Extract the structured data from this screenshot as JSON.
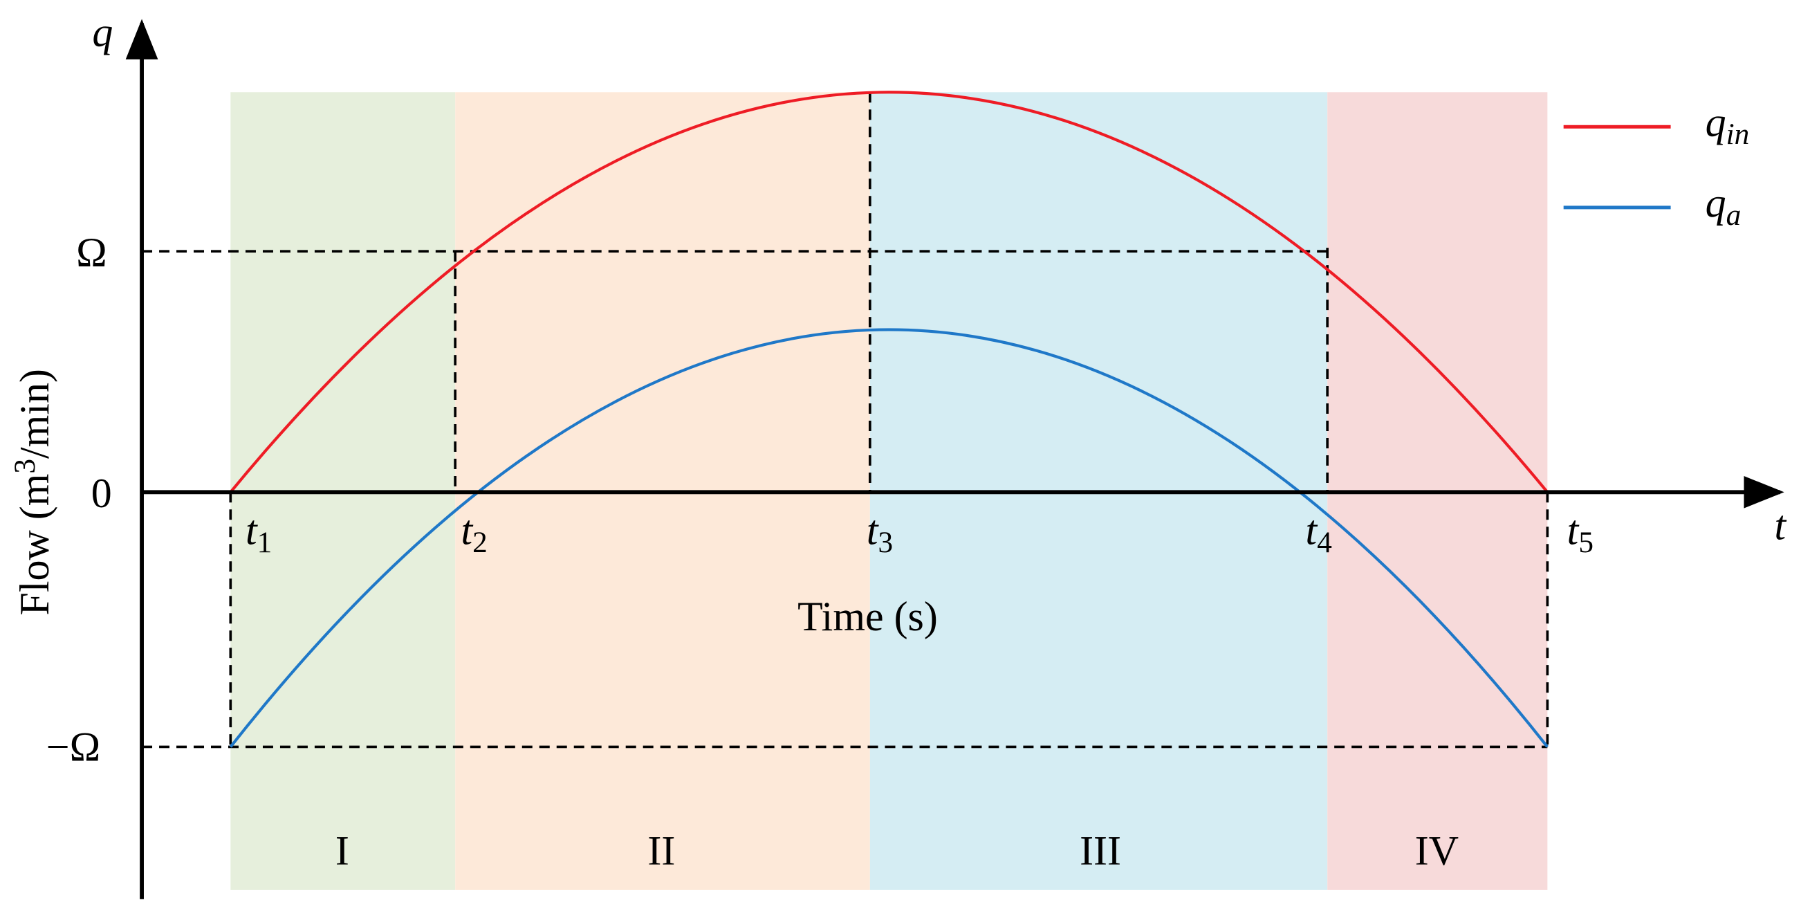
{
  "axes": {
    "y_symbol": "q",
    "x_symbol": "t",
    "y_title": {
      "text": "Flow (m",
      "sup": "3",
      "tail": "/min)"
    },
    "x_title": "Time (s)",
    "y_ticks": [
      "Ω",
      "0",
      "−Ω"
    ],
    "x_ticks": [
      {
        "base": "t",
        "sub": "1"
      },
      {
        "base": "t",
        "sub": "2"
      },
      {
        "base": "t",
        "sub": "3"
      },
      {
        "base": "t",
        "sub": "4"
      },
      {
        "base": "t",
        "sub": "5"
      }
    ]
  },
  "regions": [
    "I",
    "II",
    "III",
    "IV"
  ],
  "legend": [
    {
      "base": "q",
      "sub": "in"
    },
    {
      "base": "q",
      "sub": "a"
    }
  ]
}
